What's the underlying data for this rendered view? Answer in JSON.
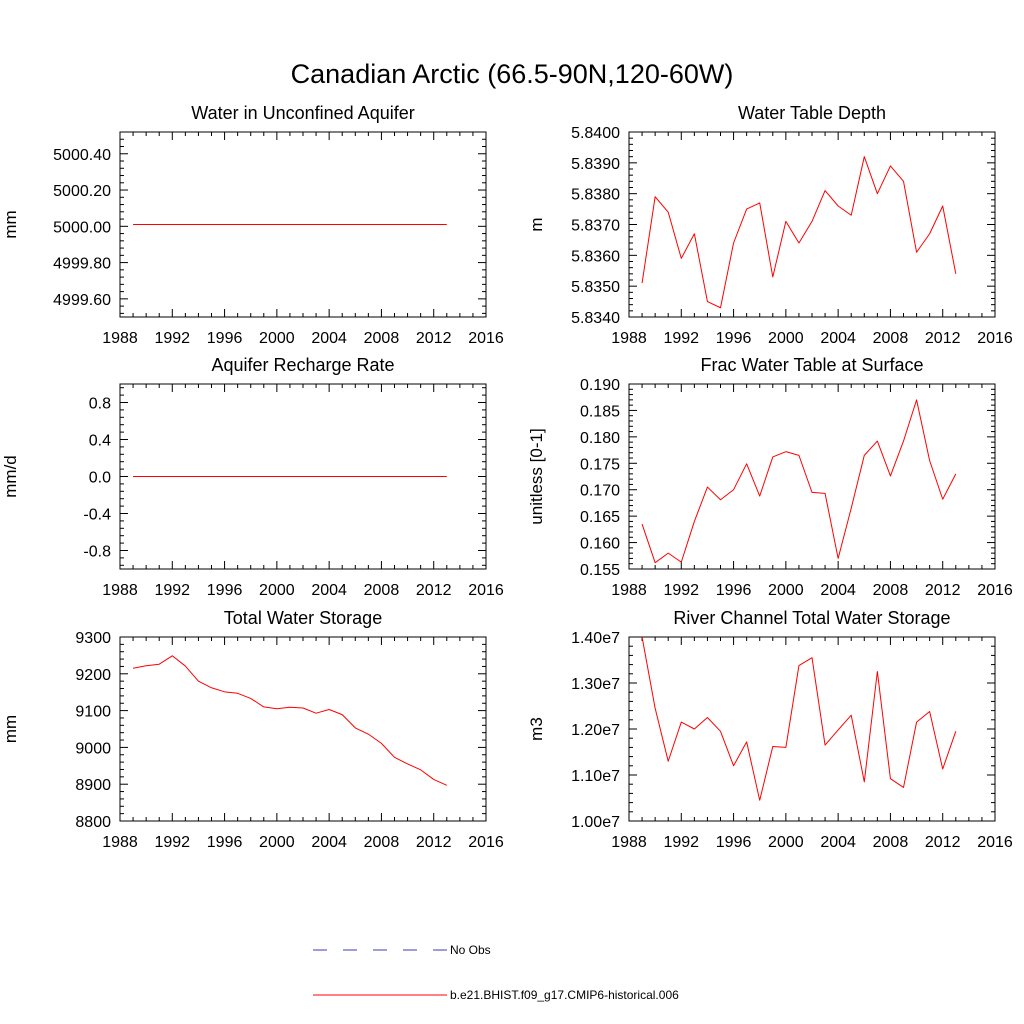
{
  "figure": {
    "title": "Canadian Arctic (66.5-90N,120-60W)"
  },
  "legend": [
    {
      "label": "No Obs",
      "color": "#3b3bb3",
      "style": "dashed"
    },
    {
      "label": "b.e21.BHIST.f09_g17.CMIP6-historical.006",
      "color": "#ff0000",
      "style": "solid"
    }
  ],
  "chart_data": [
    {
      "type": "line",
      "title": "Water in Unconfined Aquifer",
      "ylabel": "mm",
      "xlim": [
        1988,
        2016
      ],
      "ylim": [
        4999.5,
        5000.52
      ],
      "xticks": [
        1988,
        1992,
        1996,
        2000,
        2004,
        2008,
        2012,
        2016
      ],
      "yticks": [
        4999.6,
        4999.8,
        5000.0,
        5000.2,
        5000.4
      ],
      "ytick_labels": [
        "4999.60",
        "4999.80",
        "5000.00",
        "5000.20",
        "5000.40"
      ],
      "x": [
        1989,
        1990,
        1991,
        1992,
        1993,
        1994,
        1995,
        1996,
        1997,
        1998,
        1999,
        2000,
        2001,
        2002,
        2003,
        2004,
        2005,
        2006,
        2007,
        2008,
        2009,
        2010,
        2011,
        2012,
        2013
      ],
      "series": [
        {
          "color": "#ff0000",
          "values": [
            5000.01,
            5000.01,
            5000.01,
            5000.01,
            5000.01,
            5000.01,
            5000.01,
            5000.01,
            5000.01,
            5000.01,
            5000.01,
            5000.01,
            5000.01,
            5000.01,
            5000.01,
            5000.01,
            5000.01,
            5000.01,
            5000.01,
            5000.01,
            5000.01,
            5000.01,
            5000.01,
            5000.01,
            5000.01
          ]
        }
      ]
    },
    {
      "type": "line",
      "title": "Water Table Depth",
      "ylabel": "m",
      "xlim": [
        1988,
        2016
      ],
      "ylim": [
        5.834,
        5.84
      ],
      "xticks": [
        1988,
        1992,
        1996,
        2000,
        2004,
        2008,
        2012,
        2016
      ],
      "yticks": [
        5.834,
        5.835,
        5.836,
        5.837,
        5.838,
        5.839,
        5.84
      ],
      "ytick_labels": [
        "5.8340",
        "5.8350",
        "5.8360",
        "5.8370",
        "5.8380",
        "5.8390",
        "5.8400"
      ],
      "x": [
        1989,
        1990,
        1991,
        1992,
        1993,
        1994,
        1995,
        1996,
        1997,
        1998,
        1999,
        2000,
        2001,
        2002,
        2003,
        2004,
        2005,
        2006,
        2007,
        2008,
        2009,
        2010,
        2011,
        2012,
        2013
      ],
      "series": [
        {
          "color": "#ff0000",
          "values": [
            5.8351,
            5.8379,
            5.8374,
            5.8359,
            5.8367,
            5.8345,
            5.8343,
            5.8364,
            5.8375,
            5.8377,
            5.8353,
            5.8371,
            5.8364,
            5.8371,
            5.8381,
            5.8376,
            5.8373,
            5.8392,
            5.838,
            5.8389,
            5.8384,
            5.8361,
            5.8367,
            5.8376,
            5.8354
          ]
        }
      ]
    },
    {
      "type": "line",
      "title": "Aquifer Recharge Rate",
      "ylabel": "mm/d",
      "xlim": [
        1988,
        2016
      ],
      "ylim": [
        -1.0,
        1.0
      ],
      "xticks": [
        1988,
        1992,
        1996,
        2000,
        2004,
        2008,
        2012,
        2016
      ],
      "yticks": [
        -0.8,
        -0.4,
        0.0,
        0.4,
        0.8
      ],
      "ytick_labels": [
        "-0.8",
        "-0.4",
        "0.0",
        "0.4",
        "0.8"
      ],
      "x": [
        1989,
        1990,
        1991,
        1992,
        1993,
        1994,
        1995,
        1996,
        1997,
        1998,
        1999,
        2000,
        2001,
        2002,
        2003,
        2004,
        2005,
        2006,
        2007,
        2008,
        2009,
        2010,
        2011,
        2012,
        2013
      ],
      "series": [
        {
          "color": "#ff0000",
          "values": [
            0.0,
            0.0,
            0.0,
            0.0,
            0.0,
            0.0,
            0.0,
            0.0,
            0.0,
            0.0,
            0.0,
            0.0,
            0.0,
            0.0,
            0.0,
            0.0,
            0.0,
            0.0,
            0.0,
            0.0,
            0.0,
            0.0,
            0.0,
            0.0,
            0.0
          ]
        }
      ]
    },
    {
      "type": "line",
      "title": "Frac Water Table at Surface",
      "ylabel": "unitless [0-1]",
      "xlim": [
        1988,
        2016
      ],
      "ylim": [
        0.155,
        0.19
      ],
      "xticks": [
        1988,
        1992,
        1996,
        2000,
        2004,
        2008,
        2012,
        2016
      ],
      "yticks": [
        0.155,
        0.16,
        0.165,
        0.17,
        0.175,
        0.18,
        0.185,
        0.19
      ],
      "ytick_labels": [
        "0.155",
        "0.160",
        "0.165",
        "0.170",
        "0.175",
        "0.180",
        "0.185",
        "0.190"
      ],
      "x": [
        1989,
        1990,
        1991,
        1992,
        1993,
        1994,
        1995,
        1996,
        1997,
        1998,
        1999,
        2000,
        2001,
        2002,
        2003,
        2004,
        2005,
        2006,
        2007,
        2008,
        2009,
        2010,
        2011,
        2012,
        2013
      ],
      "series": [
        {
          "color": "#ff0000",
          "values": [
            0.1635,
            0.1562,
            0.158,
            0.1563,
            0.164,
            0.1705,
            0.1681,
            0.17,
            0.1749,
            0.1688,
            0.1762,
            0.1772,
            0.1765,
            0.1695,
            0.1693,
            0.157,
            0.1665,
            0.1765,
            0.1792,
            0.1726,
            0.1792,
            0.187,
            0.1755,
            0.1682,
            0.173
          ]
        }
      ]
    },
    {
      "type": "line",
      "title": "Total Water Storage",
      "ylabel": "mm",
      "xlim": [
        1988,
        2016
      ],
      "ylim": [
        8800,
        9300
      ],
      "xticks": [
        1988,
        1992,
        1996,
        2000,
        2004,
        2008,
        2012,
        2016
      ],
      "yticks": [
        8800,
        8900,
        9000,
        9100,
        9200,
        9300
      ],
      "ytick_labels": [
        "8800",
        "8900",
        "9000",
        "9100",
        "9200",
        "9300"
      ],
      "x": [
        1989,
        1990,
        1991,
        1992,
        1993,
        1994,
        1995,
        1996,
        1997,
        1998,
        1999,
        2000,
        2001,
        2002,
        2003,
        2004,
        2005,
        2006,
        2007,
        2008,
        2009,
        2010,
        2011,
        2012,
        2013
      ],
      "series": [
        {
          "color": "#ff0000",
          "values": [
            9215,
            9222,
            9226,
            9249,
            9221,
            9180,
            9162,
            9151,
            9147,
            9133,
            9110,
            9105,
            9109,
            9107,
            9093,
            9103,
            9089,
            9053,
            9036,
            9011,
            8973,
            8955,
            8939,
            8913,
            8897
          ]
        }
      ]
    },
    {
      "type": "line",
      "title": "River Channel Total Water Storage",
      "ylabel": "m3",
      "xlim": [
        1988,
        2016
      ],
      "ylim": [
        10000000,
        14000000
      ],
      "xticks": [
        1988,
        1992,
        1996,
        2000,
        2004,
        2008,
        2012,
        2016
      ],
      "yticks": [
        10000000,
        11000000,
        12000000,
        13000000,
        14000000
      ],
      "ytick_labels": [
        "1.00e7",
        "1.10e7",
        "1.20e7",
        "1.30e7",
        "1.40e7"
      ],
      "x": [
        1989,
        1990,
        1991,
        1992,
        1993,
        1994,
        1995,
        1996,
        1997,
        1998,
        1999,
        2000,
        2001,
        2002,
        2003,
        2004,
        2005,
        2006,
        2007,
        2008,
        2009,
        2010,
        2011,
        2012,
        2013
      ],
      "series": [
        {
          "color": "#ff0000",
          "values": [
            14000000,
            12450000,
            11300000,
            12150000,
            12000000,
            12250000,
            11950000,
            11200000,
            11720000,
            10450000,
            11620000,
            11600000,
            13380000,
            13550000,
            11650000,
            11980000,
            12300000,
            10850000,
            13250000,
            10920000,
            10730000,
            12150000,
            12380000,
            11130000,
            11950000
          ]
        }
      ]
    }
  ]
}
